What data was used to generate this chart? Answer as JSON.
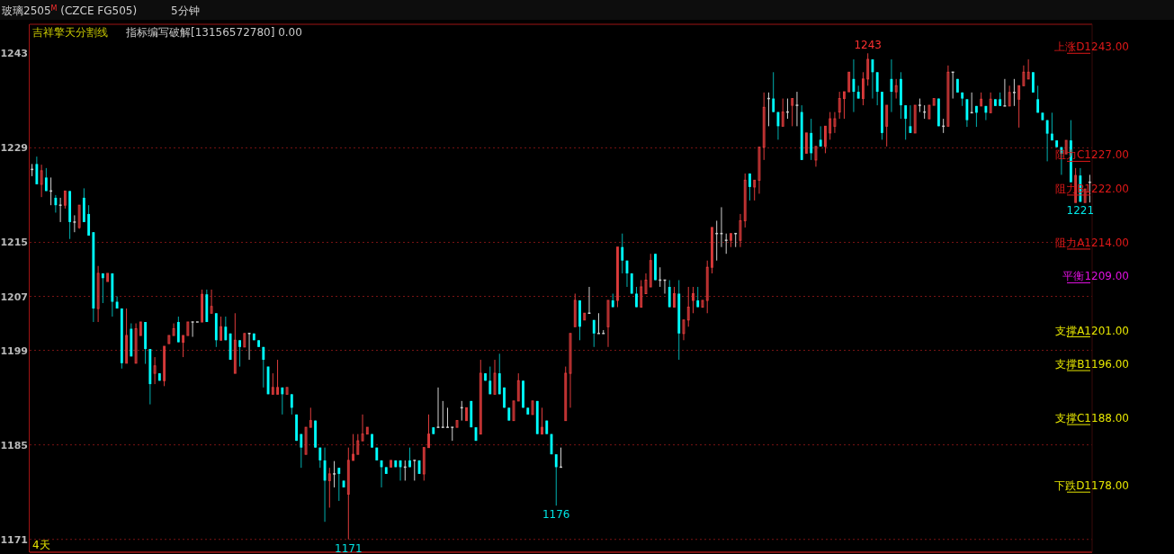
{
  "chart_data": {
    "type": "candlestick",
    "title": "玻璃2505$^{M}$ (CZCE FG505)",
    "categories": [
      null,
      null,
      null,
      null,
      null,
      null,
      null,
      null,
      null,
      null,
      null,
      null,
      null,
      null,
      null,
      null,
      null,
      null,
      null,
      null,
      null,
      null,
      null,
      null,
      null,
      null,
      null,
      null,
      null,
      null,
      null,
      null,
      null,
      null,
      null,
      null,
      null,
      null,
      null,
      null,
      null,
      null,
      null,
      null,
      null,
      null,
      null,
      null,
      null,
      null,
      null,
      null,
      null,
      null,
      null,
      null,
      null,
      null,
      null,
      null,
      null,
      null,
      null,
      null,
      null,
      null,
      null,
      null,
      null,
      null,
      null,
      null,
      null,
      null,
      null,
      null,
      null,
      null,
      null,
      null,
      null,
      null,
      null,
      null,
      null,
      null,
      null,
      null,
      null,
      null,
      null,
      null,
      null,
      null,
      null,
      null,
      null,
      null,
      null,
      null,
      null,
      null,
      null,
      null,
      null,
      null,
      null,
      null,
      null,
      null,
      null,
      null,
      null,
      null,
      null,
      null,
      null,
      null,
      null,
      null,
      null,
      null,
      null,
      null,
      null,
      null,
      null,
      null,
      null,
      null,
      null,
      null,
      null,
      null,
      null,
      null,
      null,
      null,
      null,
      null,
      null,
      null,
      null,
      null,
      null,
      null,
      null,
      null,
      null,
      null,
      null,
      null,
      null,
      null,
      null,
      null,
      null,
      null,
      null,
      null,
      null,
      null,
      null,
      null,
      null,
      null,
      null,
      null,
      null,
      null,
      null,
      null,
      null,
      null,
      null,
      null,
      null,
      null,
      null,
      null,
      null,
      null,
      null,
      null,
      null,
      null,
      null,
      null,
      null,
      null,
      null,
      null,
      null,
      null,
      null,
      null,
      null,
      null,
      null,
      null,
      null,
      null,
      null,
      null,
      null,
      null,
      null,
      null,
      null,
      null,
      null,
      null,
      null,
      null,
      null,
      null,
      null,
      null,
      null,
      null,
      null,
      null,
      null,
      null,
      null
    ],
    "ohlc": [
      [
        1225.8,
        1226.6,
        1224.8,
        1225.8
      ],
      [
        1226.6,
        1227.7,
        1223.6,
        1223.6
      ],
      [
        1223.6,
        1226.5,
        1221.7,
        1225.6
      ],
      [
        1224.6,
        1226,
        1222.6,
        1222.6
      ],
      [
        1222.6,
        1224.6,
        1220.5,
        1222.6
      ],
      [
        1221.6,
        1222,
        1219.4,
        1220.5
      ],
      [
        1220.5,
        1221.6,
        1218,
        1220.5
      ],
      [
        1220.5,
        1222.6,
        1220,
        1222.6
      ],
      [
        1222.6,
        1222.6,
        1215.5,
        1218
      ],
      [
        1218,
        1219,
        1216.5,
        1218
      ],
      [
        1217.2,
        1220.5,
        1217,
        1220.5
      ],
      [
        1221.6,
        1223,
        1218,
        1218
      ],
      [
        1219.2,
        1220.5,
        1216,
        1216
      ],
      [
        1216.5,
        1216.5,
        1203.2,
        1205.2
      ],
      [
        1205.2,
        1211.5,
        1203.2,
        1210.4
      ],
      [
        1210.4,
        1210.4,
        1206,
        1209.7
      ],
      [
        1209.2,
        1210.4,
        1209.2,
        1210.4
      ],
      [
        1210.4,
        1210.4,
        1204,
        1206.2
      ],
      [
        1206.2,
        1207,
        1205.2,
        1205.2
      ],
      [
        1205.2,
        1205.2,
        1196.3,
        1197.1
      ],
      [
        1197.1,
        1205.2,
        1197.1,
        1201.2
      ],
      [
        1202.2,
        1203,
        1198.1,
        1198.1
      ],
      [
        1197.1,
        1203,
        1197.1,
        1202.2
      ],
      [
        1201.2,
        1203.2,
        1201.2,
        1203.2
      ],
      [
        1203.2,
        1203.2,
        1197,
        1199.2
      ],
      [
        1199.2,
        1199.2,
        1191,
        1194
      ],
      [
        1195.6,
        1198,
        1194,
        1196.7
      ],
      [
        1195.6,
        1195.6,
        1194.5,
        1194.5
      ],
      [
        1194.5,
        1199.6,
        1193.7,
        1199.6
      ],
      [
        1200,
        1201.2,
        1200,
        1201.2
      ],
      [
        1201.2,
        1203,
        1201.2,
        1202.2
      ],
      [
        1203.2,
        1204,
        1200.2,
        1200.2
      ],
      [
        1200.2,
        1201.2,
        1198,
        1201.2
      ],
      [
        1201.2,
        1203.2,
        1201.2,
        1203.2
      ],
      [
        1203.2,
        1203.2,
        1201,
        1203.2
      ],
      [
        1203.2,
        1203.2,
        1203.2,
        1203.2
      ],
      [
        1203.2,
        1208,
        1203.2,
        1207.3
      ],
      [
        1207.3,
        1208,
        1203.2,
        1203.2
      ],
      [
        1204.5,
        1208,
        1204.5,
        1205.5
      ],
      [
        1204.5,
        1204.5,
        1199.5,
        1200.5
      ],
      [
        1200.5,
        1204,
        1200.5,
        1202.5
      ],
      [
        1202.5,
        1204,
        1200.5,
        1200.5
      ],
      [
        1201.5,
        1201.5,
        1197.6,
        1197.6
      ],
      [
        1195.6,
        1204.5,
        1195.6,
        1200.5
      ],
      [
        1200.5,
        1200.5,
        1196.6,
        1199.5
      ],
      [
        1199.5,
        1201.5,
        1199.5,
        1201.5
      ],
      [
        1201.5,
        1201.5,
        1197.6,
        1201.5
      ],
      [
        1201.5,
        1201.5,
        1200.5,
        1200.5
      ],
      [
        1200.5,
        1200.5,
        1199.5,
        1199.5
      ],
      [
        1199.5,
        1199.5,
        1193.5,
        1197.6
      ],
      [
        1196.6,
        1196.6,
        1192.5,
        1192.5
      ],
      [
        1192.5,
        1195.6,
        1192.5,
        1193.5
      ],
      [
        1192.5,
        1197.6,
        1192.5,
        1193.5
      ],
      [
        1193.5,
        1193.5,
        1189.5,
        1192.5
      ],
      [
        1192.5,
        1193.5,
        1192.5,
        1193.5
      ],
      [
        1192.5,
        1192.5,
        1189.5,
        1190.5
      ],
      [
        1189.5,
        1189.5,
        1185.6,
        1185.6
      ],
      [
        1186.6,
        1186.6,
        1181.6,
        1184.6
      ],
      [
        1183.6,
        1187.6,
        1183.6,
        1187.6
      ],
      [
        1187.6,
        1190.5,
        1187.6,
        1188.6
      ],
      [
        1188.6,
        1188.6,
        1184.6,
        1184.6
      ],
      [
        1184.6,
        1184.6,
        1181.6,
        1182.7
      ],
      [
        1182.7,
        1184.6,
        1173.6,
        1179.7
      ],
      [
        1179.7,
        1181.6,
        1175.7,
        1180.7
      ],
      [
        1180.7,
        1182.6,
        1178.7,
        1180.7
      ],
      [
        1181.6,
        1181.6,
        1176.7,
        1180.7
      ],
      [
        1179.7,
        1179.7,
        1178.7,
        1178.7
      ],
      [
        1177.7,
        1184.6,
        1171,
        1182.7
      ],
      [
        1182.7,
        1186.6,
        1182.7,
        1183.6
      ],
      [
        1183.6,
        1186.6,
        1183.6,
        1185.6
      ],
      [
        1185.6,
        1189.5,
        1185.6,
        1186.6
      ],
      [
        1186.6,
        1187.6,
        1186.6,
        1187.6
      ],
      [
        1186.6,
        1186.6,
        1184.6,
        1184.6
      ],
      [
        1184.6,
        1184.6,
        1182.7,
        1182.7
      ],
      [
        1182.7,
        1182.7,
        1178.7,
        1181.7
      ],
      [
        1181.7,
        1181.7,
        1180.7,
        1180.7
      ],
      [
        1181.7,
        1182.7,
        1181.7,
        1182.7
      ],
      [
        1182.7,
        1182.7,
        1181.7,
        1181.7
      ],
      [
        1182.7,
        1182.7,
        1179.7,
        1181.7
      ],
      [
        1181.7,
        1182.7,
        1179.7,
        1181.7
      ],
      [
        1182.7,
        1184.6,
        1181.7,
        1181.7
      ],
      [
        1182.7,
        1182.7,
        1179.7,
        1182.7
      ],
      [
        1182.7,
        1182.7,
        1180.7,
        1180.7
      ],
      [
        1180.7,
        1184.6,
        1179.7,
        1184.6
      ],
      [
        1184.6,
        1189.5,
        1184.6,
        1186.6
      ],
      [
        1187.6,
        1187.6,
        1186.6,
        1186.6
      ],
      [
        1187.6,
        1193.5,
        1187.6,
        1187.6
      ],
      [
        1187.6,
        1191.5,
        1187.6,
        1187.6
      ],
      [
        1187.6,
        1190.5,
        1187.6,
        1187.6
      ],
      [
        1187.6,
        1187.6,
        1185.6,
        1187.6
      ],
      [
        1187.6,
        1188.6,
        1187.6,
        1188.6
      ],
      [
        1190.5,
        1191.5,
        1188.6,
        1190.5
      ],
      [
        1188.6,
        1190.5,
        1188.6,
        1190.5
      ],
      [
        1191.5,
        1191.5,
        1187.6,
        1187.6
      ],
      [
        1187.6,
        1187.6,
        1185.6,
        1185.6
      ],
      [
        1186.6,
        1197.6,
        1186.6,
        1195.6
      ],
      [
        1195.6,
        1195.6,
        1194.5,
        1194.5
      ],
      [
        1194.5,
        1196.6,
        1192.5,
        1192.5
      ],
      [
        1192.5,
        1197.6,
        1192.5,
        1195.6
      ],
      [
        1195.6,
        1198.5,
        1192.5,
        1192.5
      ],
      [
        1193.5,
        1193.5,
        1190.5,
        1190.5
      ],
      [
        1190.5,
        1190.5,
        1188.6,
        1188.6
      ],
      [
        1188.6,
        1191.5,
        1188.6,
        1191.5
      ],
      [
        1191.5,
        1195.6,
        1191.5,
        1194.5
      ],
      [
        1194.5,
        1194.5,
        1190.5,
        1190.5
      ],
      [
        1190.5,
        1190.5,
        1189.5,
        1189.5
      ],
      [
        1189.5,
        1191.5,
        1189.5,
        1191.5
      ],
      [
        1191.5,
        1191.5,
        1186.6,
        1186.6
      ],
      [
        1186.6,
        1190.5,
        1186.6,
        1187.6
      ],
      [
        1188.6,
        1188.6,
        1186.6,
        1186.6
      ],
      [
        1186.6,
        1186.6,
        1183.6,
        1183.6
      ],
      [
        1183.6,
        1183.6,
        1176,
        1181.7
      ],
      [
        1181.7,
        1184.6,
        1181.7,
        1181.7
      ],
      [
        1188.6,
        1196.6,
        1188.6,
        1195.6
      ],
      [
        1195.6,
        1201.5,
        1190.5,
        1201.5
      ],
      [
        1202.5,
        1207.4,
        1202.5,
        1206.4
      ],
      [
        1206.4,
        1206.4,
        1200.5,
        1202.5
      ],
      [
        1203.5,
        1204.5,
        1203.5,
        1204.5
      ],
      [
        1204.5,
        1208.4,
        1204.5,
        1204.5
      ],
      [
        1203.5,
        1203.5,
        1199.5,
        1201.5
      ],
      [
        1201.5,
        1204.5,
        1201.5,
        1201.5
      ],
      [
        1201.5,
        1202,
        1201.5,
        1201.5
      ],
      [
        1202.5,
        1206.4,
        1199.5,
        1206.4
      ],
      [
        1206.4,
        1207.4,
        1205.4,
        1205.4
      ],
      [
        1206.4,
        1214.3,
        1205.4,
        1214.3
      ],
      [
        1214.3,
        1216.3,
        1210.4,
        1212.3
      ],
      [
        1212.3,
        1212.3,
        1208.4,
        1210.4
      ],
      [
        1210.4,
        1210.4,
        1207.4,
        1207.4
      ],
      [
        1207.4,
        1208.4,
        1205.4,
        1205.4
      ],
      [
        1205.4,
        1209.4,
        1205.4,
        1208.4
      ],
      [
        1207.4,
        1210.4,
        1207.4,
        1209.4
      ],
      [
        1208.4,
        1213.3,
        1208.4,
        1212.3
      ],
      [
        1213.3,
        1213.3,
        1209.4,
        1209.4
      ],
      [
        1209.4,
        1211.3,
        1208.4,
        1209.4
      ],
      [
        1209.4,
        1209.4,
        1207.4,
        1209.4
      ],
      [
        1208.4,
        1209.4,
        1205.4,
        1205.4
      ],
      [
        1205.4,
        1208.4,
        1205.4,
        1207.4
      ],
      [
        1207.4,
        1209.4,
        1197.6,
        1201.5
      ],
      [
        1201.5,
        1203.5,
        1200.5,
        1203.5
      ],
      [
        1203.5,
        1208.4,
        1202.5,
        1205.4
      ],
      [
        1206.4,
        1208.4,
        1204.5,
        1207.4
      ],
      [
        1206.4,
        1208.4,
        1205.4,
        1205.4
      ],
      [
        1205.4,
        1206.4,
        1205.4,
        1206.4
      ],
      [
        1206.4,
        1212.3,
        1204.5,
        1211.3
      ],
      [
        1211.3,
        1217.2,
        1210.4,
        1217.2
      ],
      [
        1216.3,
        1218.2,
        1212.3,
        1216.3
      ],
      [
        1216.3,
        1220.2,
        1214.3,
        1216.3
      ],
      [
        1215.3,
        1216.3,
        1213.3,
        1215.3
      ],
      [
        1215.3,
        1216.3,
        1214.3,
        1216.3
      ],
      [
        1216.3,
        1216.3,
        1214.3,
        1216.3
      ],
      [
        1215.3,
        1219.2,
        1214.3,
        1218.2
      ],
      [
        1218.2,
        1225.2,
        1217.2,
        1224.2
      ],
      [
        1225.2,
        1225.2,
        1221.2,
        1223.2
      ],
      [
        1223.2,
        1224.2,
        1221.2,
        1224.2
      ],
      [
        1224.2,
        1229.1,
        1222.2,
        1229.1
      ],
      [
        1229.1,
        1237.2,
        1227.2,
        1235
      ],
      [
        1236.3,
        1237.2,
        1232.2,
        1236.3
      ],
      [
        1236.3,
        1240.2,
        1234.3,
        1234.3
      ],
      [
        1234.3,
        1234.3,
        1230.2,
        1232.2
      ],
      [
        1232.2,
        1236.3,
        1232.2,
        1234.3
      ],
      [
        1234.3,
        1236.3,
        1233.3,
        1234.3
      ],
      [
        1235.3,
        1236.3,
        1232.2,
        1236.3
      ],
      [
        1235.3,
        1237.3,
        1232.2,
        1235.3
      ],
      [
        1234.3,
        1235.3,
        1227.2,
        1227.2
      ],
      [
        1228.2,
        1231.2,
        1228.2,
        1231.2
      ],
      [
        1231.2,
        1233.3,
        1227.2,
        1228.2
      ],
      [
        1227.2,
        1229.2,
        1226.2,
        1229.2
      ],
      [
        1230.2,
        1232.2,
        1229.2,
        1229.2
      ],
      [
        1229.2,
        1232.2,
        1228.2,
        1232.2
      ],
      [
        1231.2,
        1234.3,
        1230.2,
        1233.3
      ],
      [
        1232.2,
        1234.3,
        1231.2,
        1233.3
      ],
      [
        1234.3,
        1237.3,
        1233.3,
        1236.3
      ],
      [
        1236.3,
        1237.3,
        1233.3,
        1237.3
      ],
      [
        1237.3,
        1240.2,
        1237.3,
        1240.2
      ],
      [
        1239.2,
        1242.1,
        1234.3,
        1237.3
      ],
      [
        1237.3,
        1238.2,
        1236.3,
        1236.3
      ],
      [
        1236.3,
        1240.2,
        1235.3,
        1239.2
      ],
      [
        1239.2,
        1243,
        1238.2,
        1242.1
      ],
      [
        1242.1,
        1242.1,
        1236.3,
        1240.2
      ],
      [
        1240.2,
        1240.2,
        1235.3,
        1237.3
      ],
      [
        1237.3,
        1237.3,
        1230.2,
        1231.2
      ],
      [
        1232.2,
        1235.3,
        1229.2,
        1235.3
      ],
      [
        1239.2,
        1242.1,
        1234.3,
        1237.3
      ],
      [
        1237.3,
        1239.2,
        1236.3,
        1238.2
      ],
      [
        1239.2,
        1240.2,
        1233.3,
        1235.3
      ],
      [
        1235.3,
        1235.3,
        1230.2,
        1233.3
      ],
      [
        1232.2,
        1235.3,
        1231.2,
        1231.2
      ],
      [
        1231.2,
        1235.3,
        1231.2,
        1235.3
      ],
      [
        1235.3,
        1236.3,
        1234.3,
        1235.3
      ],
      [
        1234.3,
        1235.3,
        1233.3,
        1234.3
      ],
      [
        1233.3,
        1235.3,
        1233.3,
        1235.3
      ],
      [
        1235.3,
        1236.3,
        1235.3,
        1236.3
      ],
      [
        1236.3,
        1236.3,
        1232.2,
        1232.2
      ],
      [
        1232.2,
        1233.3,
        1231.2,
        1232.2
      ],
      [
        1232.2,
        1241.2,
        1232.2,
        1240.2
      ],
      [
        1240.2,
        1240.2,
        1236.3,
        1240.2
      ],
      [
        1239.2,
        1239.2,
        1237.2,
        1237.2
      ],
      [
        1237.2,
        1237.2,
        1235.2,
        1236.3
      ],
      [
        1236.2,
        1236.2,
        1232.1,
        1233.1
      ],
      [
        1234.2,
        1237.2,
        1234.2,
        1234.2
      ],
      [
        1235.2,
        1235.2,
        1232.1,
        1234.2
      ],
      [
        1235.2,
        1237.2,
        1235.2,
        1236.2
      ],
      [
        1235.2,
        1235.2,
        1233.1,
        1234.2
      ],
      [
        1234.2,
        1237.2,
        1234.2,
        1236.2
      ],
      [
        1236.2,
        1236.2,
        1235.2,
        1235.2
      ],
      [
        1236.2,
        1237.2,
        1235.2,
        1235.2
      ],
      [
        1235.2,
        1239.2,
        1235.2,
        1235.2
      ],
      [
        1235.2,
        1238.2,
        1235.2,
        1237.2
      ],
      [
        1237.2,
        1239.2,
        1235.2,
        1237.2
      ],
      [
        1236.2,
        1238.2,
        1232,
        1238.2
      ],
      [
        1238.2,
        1241.2,
        1238.2,
        1240.2
      ],
      [
        1239.2,
        1242.1,
        1239.2,
        1240.2
      ],
      [
        1240.2,
        1240.2,
        1237.2,
        1237.2
      ],
      [
        1236.2,
        1238.2,
        1234.2,
        1234.2
      ],
      [
        1234.2,
        1234.2,
        1233.1,
        1233.1
      ],
      [
        1233.1,
        1233.1,
        1227,
        1231.1
      ],
      [
        1231.1,
        1234.2,
        1230.1,
        1230.1
      ],
      [
        1230.1,
        1230.1,
        1229.1,
        1229.1
      ],
      [
        1229.1,
        1229.1,
        1225,
        1228.1
      ],
      [
        1228.1,
        1230.1,
        1228.1,
        1230.1
      ],
      [
        1230.1,
        1233.1,
        1223.9,
        1223.9
      ],
      [
        1220.9,
        1226,
        1220.9,
        1224.9
      ],
      [
        1224.9,
        1226,
        1221,
        1221
      ],
      [
        1220.9,
        1222.9,
        1220.9,
        1222.9
      ],
      [
        1223.9,
        1225,
        1220.9,
        1223.9
      ]
    ],
    "ylim": [
      1169.1,
      1247.3
    ],
    "yticks": [
      1243,
      1229,
      1215,
      1207,
      1199,
      1185,
      1171
    ],
    "tick_labels": "y",
    "grid": "y",
    "ref_lines": [
      {
        "axis": "y",
        "value": 1243,
        "label": "上涨D1243.00",
        "color": "#e01818"
      },
      {
        "axis": "y",
        "value": 1227,
        "label": "阻力C1227.00",
        "color": "#e01818"
      },
      {
        "axis": "y",
        "value": 1222,
        "label": "阻力B1222.00",
        "color": "#e01818"
      },
      {
        "axis": "y",
        "value": 1214,
        "label": "阻力A1214.00",
        "color": "#e01818"
      },
      {
        "axis": "y",
        "value": 1209,
        "label": "平衡1209.00",
        "color": "#e010e0"
      },
      {
        "axis": "y",
        "value": 1201,
        "label": "支撑A1201.00",
        "color": "#e6e600"
      },
      {
        "axis": "y",
        "value": 1196,
        "label": "支撑B1196.00",
        "color": "#e6e600"
      },
      {
        "axis": "y",
        "value": 1188,
        "label": "支撑C1188.00",
        "color": "#e6e600"
      },
      {
        "axis": "y",
        "value": 1178,
        "label": "下跌D1178.00",
        "color": "#e6e600"
      }
    ],
    "annotations": [
      "5分钟",
      "吉祥擎天分割线",
      "指标编写破解[13156572780] 0.00",
      "4天",
      {
        "text": "1243",
        "y": 1243
      },
      {
        "text": "1221",
        "y": 1221
      },
      {
        "text": "1176",
        "y": 1176
      },
      {
        "text": "1171",
        "y": 1171
      }
    ]
  }
}
